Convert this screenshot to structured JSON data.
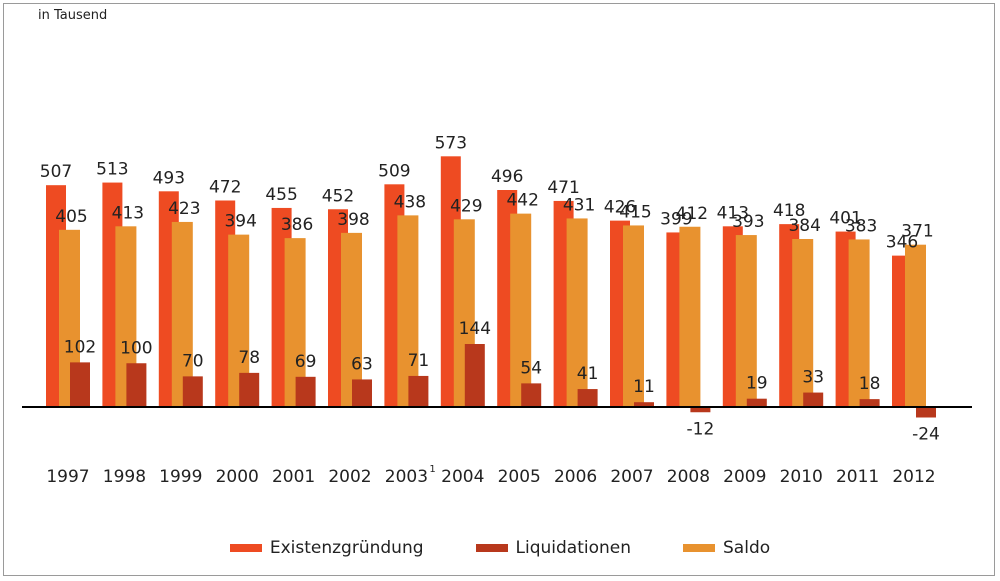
{
  "chart_data": {
    "type": "bar",
    "unit_label": "in Tausend",
    "categories": [
      "1997",
      "1998",
      "1999",
      "2000",
      "2001",
      "2002",
      "2003",
      "2004",
      "2005",
      "2006",
      "2007",
      "2008",
      "2009",
      "2010",
      "2011",
      "2012"
    ],
    "category_footnotes": {
      "2003": "1"
    },
    "series": [
      {
        "name": "Existenzgründung",
        "color": "#ee4b22",
        "values": [
          507,
          513,
          493,
          472,
          455,
          452,
          509,
          573,
          496,
          471,
          426,
          399,
          413,
          418,
          401,
          346
        ]
      },
      {
        "name": "Liquidationen",
        "color": "#b8381c",
        "values": [
          102,
          100,
          70,
          78,
          69,
          63,
          71,
          144,
          54,
          41,
          11,
          -12,
          19,
          33,
          18,
          -24
        ]
      },
      {
        "name": "Saldo",
        "color": "#e8922f",
        "values": [
          405,
          413,
          423,
          394,
          386,
          398,
          438,
          429,
          442,
          431,
          415,
          412,
          393,
          384,
          383,
          371
        ]
      }
    ],
    "grid": false,
    "legend_position": "bottom-center",
    "ylim": [
      -30,
      600
    ]
  }
}
